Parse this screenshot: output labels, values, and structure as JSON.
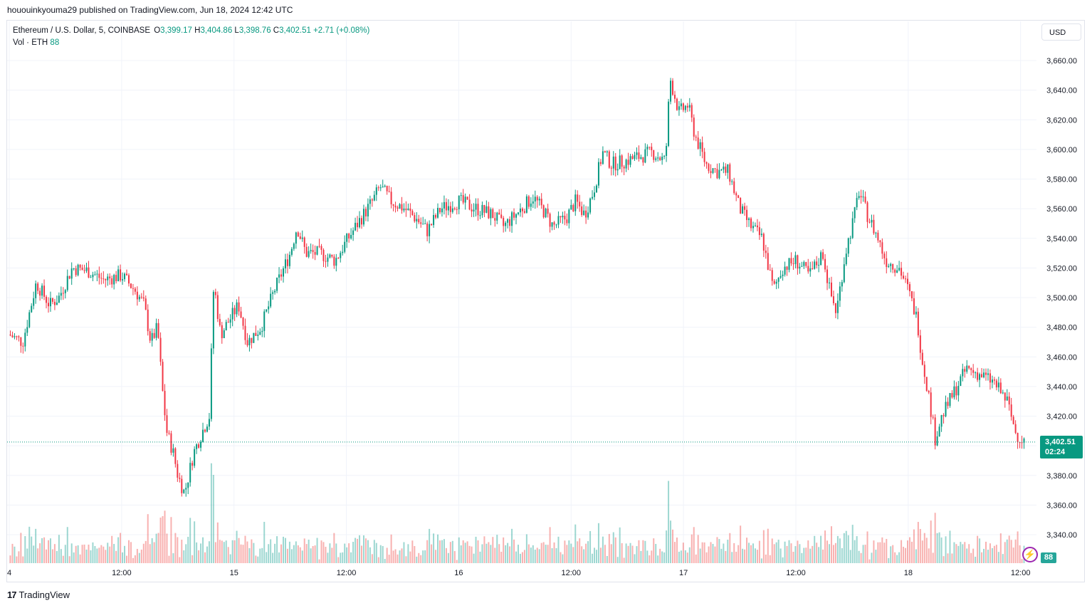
{
  "header": {
    "published": "hououinkyouma29 published on TradingView.com, Jun 18, 2024 12:42 UTC"
  },
  "legend": {
    "symbol": "Ethereum / U.S. Dollar, 5, COINBASE",
    "open_label": "O",
    "open": "3,399.17",
    "high_label": "H",
    "high": "3,404.86",
    "low_label": "L",
    "low": "3,398.76",
    "close_label": "C",
    "close": "3,402.51",
    "change": "+2.71 (+0.08%)",
    "vol_label": "Vol · ETH",
    "vol_value": "88"
  },
  "currency_button": "USD",
  "last_price": {
    "price": "3,402.51",
    "countdown": "02:24"
  },
  "volume_tag": "88",
  "footer": {
    "logo_mark": "17",
    "logo_text": "TradingView"
  },
  "colors": {
    "up": "#089981",
    "down": "#f23645",
    "vol_up": "#26a69a",
    "vol_down": "#ef5350",
    "grid": "#f0f3fa",
    "accent": "#9c27b0"
  },
  "icons": [
    "flash-icon",
    "tradingview-logo-icon"
  ],
  "chart_data": {
    "type": "candlestick",
    "title": "Ethereum / U.S. Dollar, 5, COINBASE",
    "xlabel": "",
    "ylabel": "",
    "ylim": [
      3320,
      3670
    ],
    "yticks": [
      3340,
      3360,
      3380,
      3400,
      3420,
      3440,
      3460,
      3480,
      3500,
      3520,
      3540,
      3560,
      3580,
      3600,
      3620,
      3640,
      3660
    ],
    "ytick_labels": [
      "3,340.00",
      "3,360.00",
      "3,380.00",
      "3,400.00",
      "3,420.00",
      "3,440.00",
      "3,460.00",
      "3,480.00",
      "3,500.00",
      "3,520.00",
      "3,540.00",
      "3,560.00",
      "3,580.00",
      "3,600.00",
      "3,620.00",
      "3,640.00",
      "3,660.00"
    ],
    "xlim": [
      0,
      4.52
    ],
    "xticks": [
      0,
      0.5,
      1,
      1.5,
      2,
      2.5,
      3,
      3.5,
      4,
      4.5
    ],
    "xtick_labels": [
      "4",
      "12:00",
      "15",
      "12:00",
      "16",
      "12:00",
      "17",
      "12:00",
      "18",
      "12:00"
    ],
    "grid": true,
    "last_price": 3402.51,
    "price_path": [
      [
        0.0,
        3475
      ],
      [
        0.06,
        3470
      ],
      [
        0.12,
        3510
      ],
      [
        0.18,
        3495
      ],
      [
        0.22,
        3500
      ],
      [
        0.28,
        3520
      ],
      [
        0.35,
        3518
      ],
      [
        0.42,
        3512
      ],
      [
        0.5,
        3515
      ],
      [
        0.56,
        3505
      ],
      [
        0.6,
        3495
      ],
      [
        0.63,
        3470
      ],
      [
        0.66,
        3480
      ],
      [
        0.68,
        3440
      ],
      [
        0.7,
        3410
      ],
      [
        0.73,
        3395
      ],
      [
        0.75,
        3380
      ],
      [
        0.78,
        3368
      ],
      [
        0.82,
        3395
      ],
      [
        0.86,
        3410
      ],
      [
        0.89,
        3420
      ],
      [
        0.91,
        3510
      ],
      [
        0.94,
        3475
      ],
      [
        0.98,
        3485
      ],
      [
        1.02,
        3495
      ],
      [
        1.06,
        3470
      ],
      [
        1.12,
        3480
      ],
      [
        1.18,
        3505
      ],
      [
        1.25,
        3530
      ],
      [
        1.28,
        3548
      ],
      [
        1.32,
        3530
      ],
      [
        1.38,
        3530
      ],
      [
        1.45,
        3525
      ],
      [
        1.5,
        3538
      ],
      [
        1.55,
        3550
      ],
      [
        1.62,
        3566
      ],
      [
        1.65,
        3575
      ],
      [
        1.7,
        3565
      ],
      [
        1.76,
        3560
      ],
      [
        1.82,
        3552
      ],
      [
        1.86,
        3545
      ],
      [
        1.92,
        3560
      ],
      [
        2.0,
        3565
      ],
      [
        2.08,
        3560
      ],
      [
        2.15,
        3556
      ],
      [
        2.2,
        3548
      ],
      [
        2.28,
        3560
      ],
      [
        2.33,
        3568
      ],
      [
        2.38,
        3558
      ],
      [
        2.42,
        3548
      ],
      [
        2.48,
        3554
      ],
      [
        2.52,
        3565
      ],
      [
        2.56,
        3556
      ],
      [
        2.6,
        3572
      ],
      [
        2.64,
        3598
      ],
      [
        2.68,
        3590
      ],
      [
        2.74,
        3592
      ],
      [
        2.8,
        3595
      ],
      [
        2.86,
        3598
      ],
      [
        2.92,
        3592
      ],
      [
        2.94,
        3648
      ],
      [
        2.98,
        3625
      ],
      [
        3.02,
        3630
      ],
      [
        3.05,
        3610
      ],
      [
        3.1,
        3590
      ],
      [
        3.15,
        3585
      ],
      [
        3.2,
        3585
      ],
      [
        3.25,
        3560
      ],
      [
        3.3,
        3548
      ],
      [
        3.35,
        3540
      ],
      [
        3.4,
        3505
      ],
      [
        3.44,
        3520
      ],
      [
        3.5,
        3525
      ],
      [
        3.56,
        3515
      ],
      [
        3.62,
        3530
      ],
      [
        3.65,
        3505
      ],
      [
        3.68,
        3490
      ],
      [
        3.72,
        3530
      ],
      [
        3.76,
        3555
      ],
      [
        3.78,
        3572
      ],
      [
        3.82,
        3555
      ],
      [
        3.86,
        3542
      ],
      [
        3.9,
        3525
      ],
      [
        3.96,
        3520
      ],
      [
        4.0,
        3505
      ],
      [
        4.04,
        3485
      ],
      [
        4.06,
        3460
      ],
      [
        4.09,
        3435
      ],
      [
        4.12,
        3405
      ],
      [
        4.15,
        3420
      ],
      [
        4.2,
        3435
      ],
      [
        4.26,
        3452
      ],
      [
        4.32,
        3448
      ],
      [
        4.38,
        3443
      ],
      [
        4.44,
        3430
      ],
      [
        4.48,
        3408
      ],
      [
        4.52,
        3402.51
      ]
    ],
    "volume_series": {
      "name": "Vol · ETH",
      "last": 88
    }
  }
}
